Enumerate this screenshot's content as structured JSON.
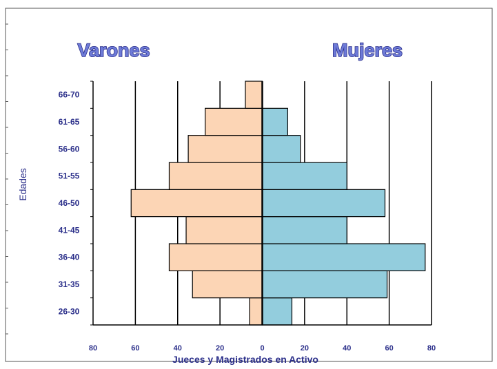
{
  "chart_data": {
    "type": "bar",
    "orientation": "horizontal-population-pyramid",
    "left_title": "Varones",
    "right_title": "Mujeres",
    "ylabel": "Edades",
    "xlabel": "Jueces y Magistrados  en Activo",
    "categories": [
      "26-30",
      "31-35",
      "36-40",
      "41-45",
      "46-50",
      "51-55",
      "56-60",
      "61-65",
      "66-70"
    ],
    "x_ticks": [
      "80",
      "60",
      "40",
      "20",
      "0",
      "20",
      "40",
      "60",
      "80"
    ],
    "xlim": [
      -80,
      80
    ],
    "grid": "vertical",
    "series": [
      {
        "name": "Varones",
        "side": "left",
        "color": "#fcd5b5",
        "values": [
          6,
          33,
          44,
          36,
          62,
          44,
          35,
          27,
          8
        ]
      },
      {
        "name": "Mujeres",
        "side": "right",
        "color": "#93cddd",
        "values": [
          14,
          59,
          77,
          40,
          58,
          40,
          18,
          12,
          0
        ]
      }
    ]
  }
}
